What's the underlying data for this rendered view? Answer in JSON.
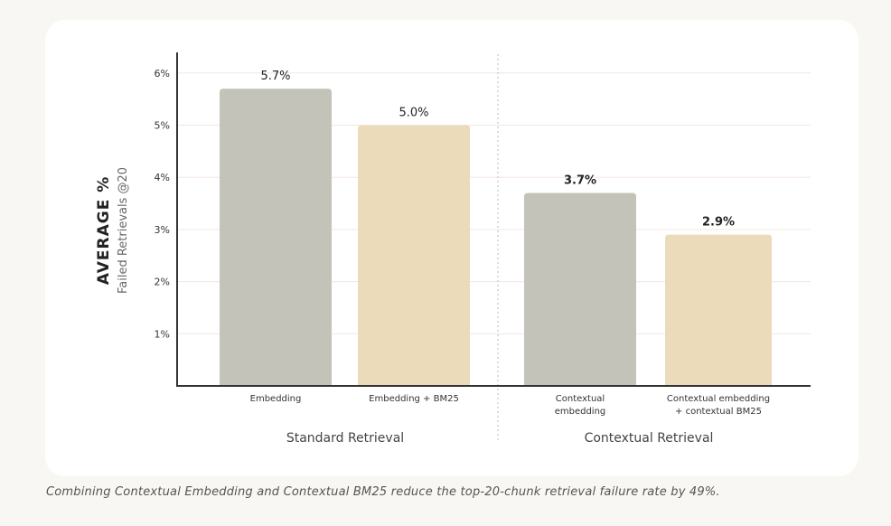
{
  "chart_data": {
    "type": "bar",
    "ylabel": "AVERAGE %",
    "ylabel_sub": "Failed Retrievals @20",
    "ylim": [
      0,
      6.45
    ],
    "yticks": [
      1,
      2,
      3,
      4,
      5,
      6
    ],
    "ytick_labels": [
      "1%",
      "2%",
      "3%",
      "4%",
      "5%",
      "6%"
    ],
    "grid": true,
    "categories": [
      [
        "Embedding"
      ],
      [
        "Embedding + BM25"
      ],
      [
        "Contextual",
        "embedding"
      ],
      [
        "Contextual embedding",
        "+ contextual BM25"
      ]
    ],
    "values": [
      5.7,
      5.0,
      3.7,
      2.9
    ],
    "value_labels": [
      "5.7%",
      "5.0%",
      "3.7%",
      "2.9%"
    ],
    "bar_colors": [
      "#c3c3b9",
      "#ebdbbb",
      "#c3c3b9",
      "#ebdbbb"
    ],
    "groups": [
      {
        "name": "Standard Retrieval",
        "categories": [
          0,
          1
        ]
      },
      {
        "name": "Contextual Retrieval",
        "categories": [
          2,
          3
        ]
      }
    ],
    "grid_color": "#f3e6e0",
    "axis_color": "#333333"
  },
  "caption": "Combining Contextual Embedding and Contextual BM25 reduce the top-20-chunk retrieval failure rate by 49%."
}
